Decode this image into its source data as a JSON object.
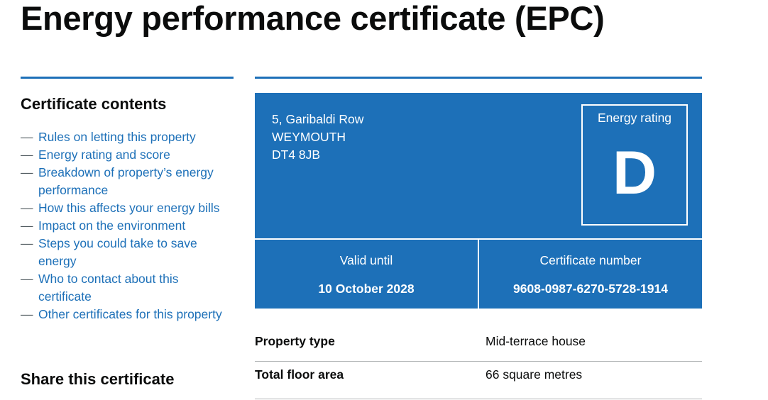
{
  "page": {
    "title": "Energy performance certificate (EPC)"
  },
  "sidebar": {
    "heading": "Certificate contents",
    "items": [
      {
        "label": "Rules on letting this property"
      },
      {
        "label": "Energy rating and score"
      },
      {
        "label": "Breakdown of property’s energy performance"
      },
      {
        "label": "How this affects your energy bills"
      },
      {
        "label": "Impact on the environment"
      },
      {
        "label": "Steps you could take to save energy"
      },
      {
        "label": "Who to contact about this certificate"
      },
      {
        "label": "Other certificates for this property"
      }
    ],
    "dash": "—",
    "share_heading": "Share this certificate"
  },
  "certificate": {
    "address": {
      "line1": "5, Garibaldi Row",
      "line2": "WEYMOUTH",
      "postcode": "DT4 8JB"
    },
    "rating_label": "Energy rating",
    "rating_letter": "D",
    "valid_until_label": "Valid until",
    "valid_until": "10 October 2028",
    "number_label": "Certificate number",
    "number": "9608-0987-6270-5728-1914"
  },
  "summary": {
    "rows": [
      {
        "key": "Property type",
        "value": "Mid-terrace house"
      },
      {
        "key": "Total floor area",
        "value": "66 square metres"
      }
    ]
  },
  "colors": {
    "brand_blue": "#1d70b8",
    "text": "#0b0c0c",
    "border": "#b1b4b6"
  }
}
